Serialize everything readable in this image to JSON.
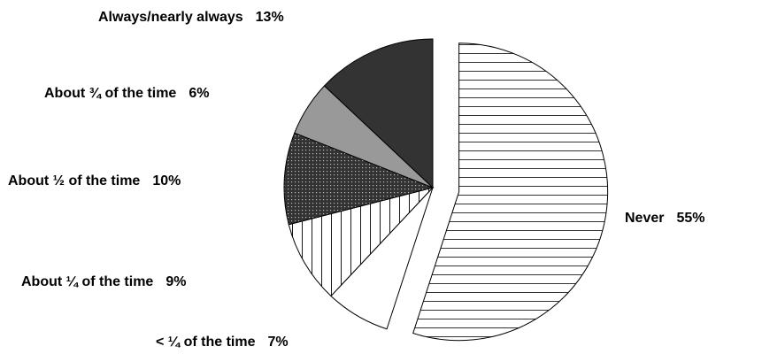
{
  "chart_data": {
    "type": "pie",
    "slices": [
      {
        "label": "Never",
        "percent_label": "55%",
        "value": 55,
        "fill": "horizontal-lines",
        "exploded": true
      },
      {
        "label": "< ¼ of the time",
        "percent_label": "7%",
        "value": 7,
        "fill": "#ffffff",
        "exploded": false
      },
      {
        "label": "About ¼ of the time",
        "percent_label": "9%",
        "value": 9,
        "fill": "vertical-lines",
        "exploded": false
      },
      {
        "label": "About ½ of the time",
        "percent_label": "10%",
        "value": 10,
        "fill": "dots-on-dark",
        "exploded": false
      },
      {
        "label": "About ¾ of the time",
        "percent_label": "6%",
        "value": 6,
        "fill": "#999999",
        "exploded": false
      },
      {
        "label": "Always/nearly always",
        "percent_label": "13%",
        "value": 13,
        "fill": "#333333",
        "exploded": false
      }
    ],
    "start": "12 o'clock",
    "direction": "clockwise",
    "legend": "none"
  }
}
